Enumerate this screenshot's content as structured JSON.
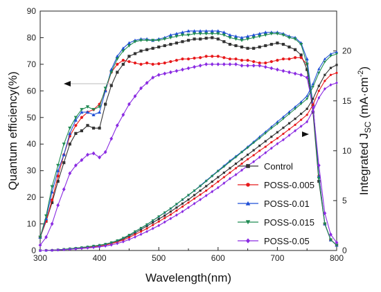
{
  "chart_data": {
    "type": "line",
    "xlabel": "Wavelength(nm)",
    "ylabel": "Quantum efficiency(%)",
    "ylabel_right_prefix": "Integrated J",
    "ylabel_right_sub": "SC",
    "ylabel_right_suffix": " (mA·cm",
    "ylabel_right_sup": "-2",
    "ylabel_right_end": ")",
    "xlim": [
      300,
      800
    ],
    "ylim_left": [
      0,
      90
    ],
    "ylim_right": [
      0,
      24
    ],
    "xticks": [
      300,
      400,
      500,
      600,
      700,
      800
    ],
    "yticks_left": [
      0,
      10,
      20,
      30,
      40,
      50,
      60,
      70,
      80,
      90
    ],
    "yticks_right": [
      0,
      5,
      10,
      15,
      20
    ],
    "legend_position": "bottom-right",
    "grid": false,
    "x": [
      300,
      310,
      320,
      330,
      340,
      350,
      360,
      370,
      380,
      390,
      400,
      410,
      420,
      430,
      440,
      450,
      460,
      470,
      480,
      490,
      500,
      510,
      520,
      530,
      540,
      550,
      560,
      570,
      580,
      590,
      600,
      610,
      620,
      630,
      640,
      650,
      660,
      670,
      680,
      690,
      700,
      710,
      720,
      730,
      740,
      750,
      760,
      770,
      780,
      790,
      800
    ],
    "eqe_series": [
      {
        "name": "Control",
        "color": "#333333",
        "marker": "square",
        "values": [
          5,
          11,
          18,
          26,
          33,
          40,
          44,
          45,
          47,
          46,
          46,
          55,
          62,
          67,
          70,
          73,
          74,
          75,
          75.5,
          76,
          76.5,
          77,
          77.5,
          78,
          78.5,
          79,
          79.5,
          79.5,
          79.8,
          80,
          79.5,
          78.5,
          77.5,
          77,
          76.5,
          76,
          76,
          76.5,
          77,
          77.5,
          78,
          77.5,
          76.5,
          75.5,
          73.5,
          68,
          52,
          26,
          10,
          4,
          2
        ]
      },
      {
        "name": "POSS-0.005",
        "color": "#e8191b",
        "marker": "circle",
        "values": [
          5,
          11,
          19,
          28,
          36,
          43,
          47,
          50,
          52,
          53,
          55,
          60,
          67,
          70,
          71.5,
          71,
          70.5,
          70,
          70.5,
          70,
          70.2,
          70.5,
          71,
          71.5,
          72,
          72,
          72.3,
          72.5,
          73,
          73,
          73,
          72.5,
          72,
          72,
          71.5,
          71.5,
          71,
          70.5,
          70.5,
          71,
          71.5,
          72,
          72,
          72.5,
          72.5,
          70,
          55,
          28,
          10,
          4,
          2
        ]
      },
      {
        "name": "POSS-0.01",
        "color": "#1f4fd6",
        "marker": "triangle",
        "values": [
          5,
          12,
          22,
          30,
          36,
          44,
          49,
          52,
          52,
          51,
          52,
          60,
          68,
          73,
          76,
          78,
          79,
          79.5,
          79.5,
          79,
          79.5,
          80,
          81,
          81.5,
          82,
          82.5,
          82.5,
          82.5,
          82.5,
          82.5,
          82.5,
          82,
          81,
          80.5,
          80,
          80.5,
          81,
          81.5,
          82,
          82,
          82,
          81.5,
          80.5,
          80,
          78,
          72,
          55,
          28,
          10,
          4,
          2
        ]
      },
      {
        "name": "POSS-0.015",
        "color": "#1f8a52",
        "marker": "triangle-down",
        "values": [
          5,
          13,
          24,
          32,
          40,
          46,
          50,
          53,
          54,
          53,
          54,
          61,
          67,
          72,
          75,
          77,
          78.5,
          79,
          79,
          79,
          79,
          79.5,
          80,
          80.5,
          81,
          81,
          81.5,
          81.5,
          81.5,
          81.5,
          81.5,
          81,
          80,
          79.5,
          79,
          79.5,
          80,
          80.5,
          81,
          81.5,
          81.5,
          81,
          80,
          79.5,
          77.5,
          70,
          54,
          27,
          10,
          4,
          2
        ]
      },
      {
        "name": "POSS-0.05",
        "color": "#8a2be2",
        "marker": "diamond",
        "values": [
          2,
          5,
          10,
          17,
          23,
          29,
          32,
          34,
          36,
          36.5,
          35,
          37,
          42,
          47,
          51,
          55,
          58,
          61,
          63,
          65,
          66,
          66.5,
          67,
          67.5,
          68,
          68.5,
          69,
          69.5,
          70,
          70,
          70,
          70,
          70,
          70,
          69.5,
          69.5,
          69.5,
          69.5,
          69,
          68.5,
          68,
          67.5,
          67,
          66.5,
          66,
          65,
          54,
          32,
          14,
          6,
          3
        ]
      }
    ],
    "jsc_series": [
      {
        "name": "Control",
        "color": "#333333",
        "marker": "square",
        "values": [
          0,
          0.01,
          0.03,
          0.06,
          0.1,
          0.15,
          0.2,
          0.25,
          0.3,
          0.38,
          0.45,
          0.55,
          0.7,
          0.9,
          1.15,
          1.45,
          1.75,
          2.1,
          2.45,
          2.8,
          3.15,
          3.5,
          3.9,
          4.3,
          4.7,
          5.1,
          5.55,
          6.0,
          6.45,
          6.9,
          7.35,
          7.8,
          8.25,
          8.7,
          9.15,
          9.6,
          10.05,
          10.5,
          10.95,
          11.4,
          11.85,
          12.3,
          12.75,
          13.2,
          13.7,
          14.2,
          15.2,
          16.5,
          17.6,
          18.3,
          18.6
        ]
      },
      {
        "name": "POSS-0.005",
        "color": "#e8191b",
        "marker": "circle",
        "values": [
          0,
          0.01,
          0.03,
          0.06,
          0.1,
          0.15,
          0.2,
          0.26,
          0.32,
          0.38,
          0.45,
          0.55,
          0.68,
          0.85,
          1.05,
          1.3,
          1.6,
          1.9,
          2.2,
          2.55,
          2.9,
          3.25,
          3.6,
          4.0,
          4.4,
          4.8,
          5.2,
          5.6,
          6.0,
          6.45,
          6.9,
          7.35,
          7.8,
          8.25,
          8.7,
          9.15,
          9.55,
          10.0,
          10.4,
          10.85,
          11.25,
          11.7,
          12.15,
          12.6,
          13.1,
          13.6,
          14.6,
          16.0,
          17.0,
          17.6,
          17.8
        ]
      },
      {
        "name": "POSS-0.01",
        "color": "#1f4fd6",
        "marker": "triangle",
        "values": [
          0,
          0.01,
          0.03,
          0.07,
          0.12,
          0.18,
          0.24,
          0.3,
          0.37,
          0.45,
          0.53,
          0.64,
          0.8,
          1.0,
          1.25,
          1.55,
          1.9,
          2.25,
          2.6,
          3.0,
          3.4,
          3.8,
          4.2,
          4.65,
          5.1,
          5.55,
          6.0,
          6.5,
          7.0,
          7.5,
          8.0,
          8.5,
          9.0,
          9.45,
          9.9,
          10.4,
          10.9,
          11.4,
          11.9,
          12.4,
          12.9,
          13.4,
          13.9,
          14.4,
          14.9,
          15.5,
          16.7,
          18.2,
          19.2,
          19.7,
          19.9
        ]
      },
      {
        "name": "POSS-0.015",
        "color": "#1f8a52",
        "marker": "triangle-down",
        "values": [
          0,
          0.01,
          0.03,
          0.07,
          0.12,
          0.18,
          0.24,
          0.3,
          0.37,
          0.45,
          0.53,
          0.64,
          0.8,
          1.0,
          1.25,
          1.55,
          1.9,
          2.25,
          2.6,
          3.0,
          3.4,
          3.8,
          4.2,
          4.65,
          5.1,
          5.55,
          6.0,
          6.45,
          6.95,
          7.45,
          7.95,
          8.4,
          8.9,
          9.35,
          9.85,
          10.3,
          10.8,
          11.25,
          11.75,
          12.25,
          12.7,
          13.2,
          13.7,
          14.2,
          14.7,
          15.2,
          16.4,
          17.8,
          18.9,
          19.5,
          19.7
        ]
      },
      {
        "name": "POSS-0.05",
        "color": "#8a2be2",
        "marker": "diamond",
        "values": [
          0,
          0.01,
          0.02,
          0.05,
          0.08,
          0.12,
          0.16,
          0.2,
          0.25,
          0.3,
          0.36,
          0.44,
          0.55,
          0.7,
          0.88,
          1.1,
          1.35,
          1.62,
          1.9,
          2.2,
          2.5,
          2.85,
          3.2,
          3.55,
          3.9,
          4.3,
          4.7,
          5.1,
          5.5,
          5.9,
          6.3,
          6.75,
          7.2,
          7.6,
          8.05,
          8.5,
          8.9,
          9.35,
          9.8,
          10.25,
          10.7,
          11.1,
          11.55,
          12.0,
          12.45,
          12.9,
          14.0,
          15.3,
          16.2,
          16.6,
          16.8
        ]
      }
    ]
  }
}
